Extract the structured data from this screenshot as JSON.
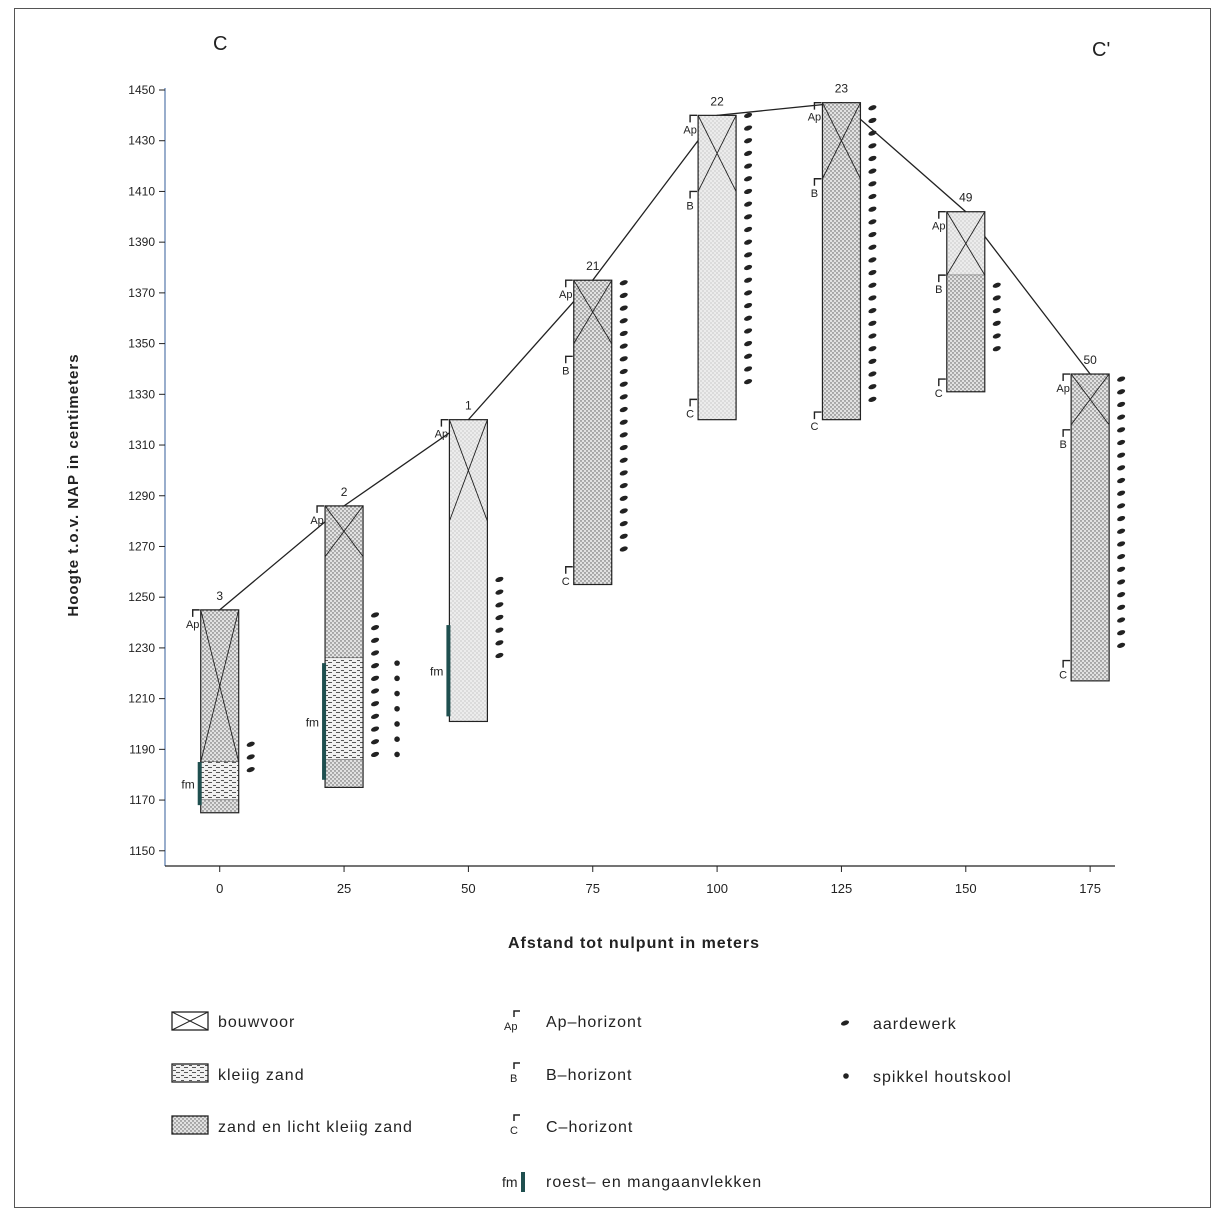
{
  "section_labels": {
    "start": "C",
    "end": "C'"
  },
  "y_axis_label": "Hoogte t.o.v. NAP in centimeters",
  "x_axis_label": "Afstand tot nulpunt in meters",
  "colors": {
    "sand": "#d9d9d9",
    "ink": "#222222",
    "fm": "#1f4f4f",
    "axis": "#5577aa"
  },
  "chart_data": {
    "type": "diagram",
    "x_ticks": [
      0,
      25,
      50,
      75,
      100,
      125,
      150,
      175
    ],
    "y_ticks": [
      1150,
      1170,
      1190,
      1210,
      1230,
      1250,
      1270,
      1290,
      1310,
      1330,
      1350,
      1370,
      1390,
      1410,
      1430,
      1450
    ],
    "xlim": [
      -11,
      180
    ],
    "ylim": [
      1144,
      1450
    ],
    "profile": [
      {
        "x": 0,
        "y": 1245
      },
      {
        "x": 25,
        "y": 1286
      },
      {
        "x": 50,
        "y": 1320
      },
      {
        "x": 75,
        "y": 1375
      },
      {
        "x": 100,
        "y": 1440
      },
      {
        "x": 125,
        "y": 1445
      },
      {
        "x": 150,
        "y": 1402
      },
      {
        "x": 175,
        "y": 1338
      }
    ],
    "boreholes": [
      {
        "id": "3",
        "x": 0,
        "top": 1245,
        "bottom": 1165,
        "bouwvoor_bottom": 1185,
        "layers": [
          {
            "type": "sand",
            "top": 1245,
            "bottom": 1185
          },
          {
            "type": "clay",
            "top": 1185,
            "bottom": 1170
          },
          {
            "type": "sand",
            "top": 1170,
            "bottom": 1165
          }
        ],
        "horizons": [
          {
            "label": "Ap",
            "depth": 1245
          }
        ],
        "fm": [
          1185,
          1168
        ],
        "aardewerk": [
          1192,
          1182
        ],
        "houtskool": []
      },
      {
        "id": "2",
        "x": 25,
        "top": 1286,
        "bottom": 1175,
        "bouwvoor_bottom": 1266,
        "layers": [
          {
            "type": "sand",
            "top": 1286,
            "bottom": 1226
          },
          {
            "type": "clay",
            "top": 1226,
            "bottom": 1186
          },
          {
            "type": "sand",
            "top": 1186,
            "bottom": 1175
          }
        ],
        "horizons": [
          {
            "label": "Ap",
            "depth": 1286
          }
        ],
        "fm": [
          1224,
          1178
        ],
        "aardewerk": [
          1243,
          1188
        ],
        "houtskool": [
          1224,
          1188
        ]
      },
      {
        "id": "1",
        "x": 50,
        "top": 1320,
        "bottom": 1201,
        "bouwvoor_bottom": 1280,
        "layers": [
          {
            "type": "sand-light",
            "top": 1320,
            "bottom": 1201
          }
        ],
        "horizons": [
          {
            "label": "Ap",
            "depth": 1320
          }
        ],
        "fm": [
          1239,
          1203
        ],
        "aardewerk": [
          1257,
          1225
        ],
        "houtskool": []
      },
      {
        "id": "21",
        "x": 75,
        "top": 1375,
        "bottom": 1255,
        "bouwvoor_bottom": 1350,
        "layers": [
          {
            "type": "sand",
            "top": 1375,
            "bottom": 1255
          }
        ],
        "horizons": [
          {
            "label": "Ap",
            "depth": 1375
          },
          {
            "label": "B",
            "depth": 1345
          },
          {
            "label": "C",
            "depth": 1262
          }
        ],
        "fm": null,
        "aardewerk": [
          1374,
          1268
        ],
        "houtskool": []
      },
      {
        "id": "22",
        "x": 100,
        "top": 1440,
        "bottom": 1320,
        "bouwvoor_bottom": 1410,
        "layers": [
          {
            "type": "sand-light",
            "top": 1440,
            "bottom": 1320
          }
        ],
        "horizons": [
          {
            "label": "Ap",
            "depth": 1440
          },
          {
            "label": "B",
            "depth": 1410
          },
          {
            "label": "C",
            "depth": 1328
          }
        ],
        "fm": null,
        "aardewerk": [
          1440,
          1333
        ],
        "houtskool": []
      },
      {
        "id": "23",
        "x": 125,
        "top": 1445,
        "bottom": 1320,
        "bouwvoor_bottom": 1415,
        "layers": [
          {
            "type": "sand",
            "top": 1445,
            "bottom": 1320
          }
        ],
        "horizons": [
          {
            "label": "Ap",
            "depth": 1445
          },
          {
            "label": "B",
            "depth": 1415
          },
          {
            "label": "C",
            "depth": 1323
          }
        ],
        "fm": null,
        "aardewerk": [
          1443,
          1325
        ],
        "houtskool": []
      },
      {
        "id": "49",
        "x": 150,
        "top": 1402,
        "bottom": 1331,
        "bouwvoor_bottom": 1377,
        "layers": [
          {
            "type": "sand-light",
            "top": 1402,
            "bottom": 1377
          },
          {
            "type": "sand",
            "top": 1377,
            "bottom": 1331
          }
        ],
        "horizons": [
          {
            "label": "Ap",
            "depth": 1402
          },
          {
            "label": "B",
            "depth": 1377
          },
          {
            "label": "C",
            "depth": 1336
          }
        ],
        "fm": null,
        "aardewerk": [
          1373,
          1345
        ],
        "houtskool": []
      },
      {
        "id": "50",
        "x": 175,
        "top": 1338,
        "bottom": 1217,
        "bouwvoor_bottom": 1318,
        "layers": [
          {
            "type": "sand",
            "top": 1338,
            "bottom": 1217
          }
        ],
        "horizons": [
          {
            "label": "Ap",
            "depth": 1338
          },
          {
            "label": "B",
            "depth": 1316
          },
          {
            "label": "C",
            "depth": 1225
          }
        ],
        "fm": null,
        "aardewerk": [
          1336,
          1229
        ],
        "houtskool": []
      }
    ]
  },
  "legend": {
    "bouwvoor": "bouwvoor",
    "kleiig_zand": "kleiig zand",
    "zand": "zand en licht kleiig zand",
    "ap_symbol": "Ap",
    "ap": "Ap–horizont",
    "b_symbol": "B",
    "b": "B–horizont",
    "c_symbol": "C",
    "c": "C–horizont",
    "fm_symbol": "fm",
    "fm": "roest– en mangaanvlekken",
    "aardewerk": "aardewerk",
    "houtskool": "spikkel houtskool"
  }
}
